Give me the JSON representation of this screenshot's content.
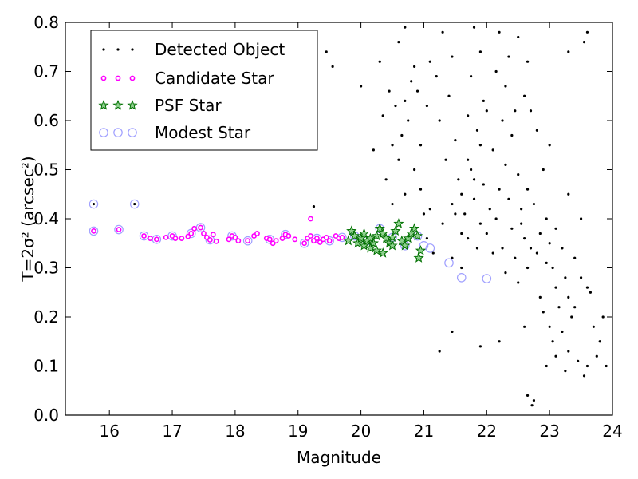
{
  "chart_data": {
    "type": "scatter",
    "title": "",
    "xlabel": "Magnitude",
    "ylabel": "T=2σ² (arcsec²)",
    "xlim": [
      15.3,
      24.0
    ],
    "ylim": [
      0.0,
      0.8
    ],
    "xticks": [
      "16",
      "17",
      "18",
      "19",
      "20",
      "21",
      "22",
      "23",
      "24"
    ],
    "yticks": [
      "0.0",
      "0.1",
      "0.2",
      "0.3",
      "0.4",
      "0.5",
      "0.6",
      "0.7",
      "0.8"
    ],
    "grid": false,
    "legend_position": "upper-left",
    "series": [
      {
        "name": "Detected Object",
        "marker": "dot",
        "color": "#000000",
        "points": [
          [
            15.75,
            0.43
          ],
          [
            16.4,
            0.43
          ],
          [
            19.25,
            0.425
          ],
          [
            19.2,
            0.4
          ],
          [
            19.2,
            0.695
          ],
          [
            19.55,
            0.71
          ],
          [
            19.45,
            0.74
          ],
          [
            20.0,
            0.67
          ],
          [
            20.3,
            0.72
          ],
          [
            20.6,
            0.76
          ],
          [
            20.2,
            0.54
          ],
          [
            20.5,
            0.55
          ],
          [
            20.4,
            0.48
          ],
          [
            20.5,
            0.43
          ],
          [
            20.35,
            0.61
          ],
          [
            20.7,
            0.79
          ],
          [
            20.85,
            0.71
          ],
          [
            20.9,
            0.66
          ],
          [
            20.75,
            0.6
          ],
          [
            20.95,
            0.55
          ],
          [
            20.85,
            0.5
          ],
          [
            20.6,
            0.52
          ],
          [
            20.7,
            0.45
          ],
          [
            21.3,
            0.78
          ],
          [
            21.45,
            0.73
          ],
          [
            21.2,
            0.69
          ],
          [
            21.4,
            0.65
          ],
          [
            21.25,
            0.6
          ],
          [
            21.5,
            0.56
          ],
          [
            21.35,
            0.52
          ],
          [
            21.55,
            0.48
          ],
          [
            21.1,
            0.42
          ],
          [
            21.3,
            0.39
          ],
          [
            21.6,
            0.37
          ],
          [
            21.15,
            0.33
          ],
          [
            21.45,
            0.32
          ],
          [
            21.05,
            0.36
          ],
          [
            21.0,
            0.41
          ],
          [
            21.8,
            0.79
          ],
          [
            21.9,
            0.74
          ],
          [
            21.75,
            0.69
          ],
          [
            21.95,
            0.64
          ],
          [
            21.7,
            0.61
          ],
          [
            21.85,
            0.58
          ],
          [
            22.0,
            0.62
          ],
          [
            21.9,
            0.55
          ],
          [
            21.75,
            0.5
          ],
          [
            21.95,
            0.47
          ],
          [
            21.8,
            0.44
          ],
          [
            21.65,
            0.41
          ],
          [
            21.9,
            0.39
          ],
          [
            22.05,
            0.42
          ],
          [
            21.7,
            0.36
          ],
          [
            21.85,
            0.34
          ],
          [
            22.2,
            0.78
          ],
          [
            22.35,
            0.73
          ],
          [
            22.15,
            0.7
          ],
          [
            22.3,
            0.67
          ],
          [
            22.45,
            0.62
          ],
          [
            22.25,
            0.6
          ],
          [
            22.4,
            0.57
          ],
          [
            22.1,
            0.54
          ],
          [
            22.3,
            0.51
          ],
          [
            22.5,
            0.49
          ],
          [
            22.2,
            0.46
          ],
          [
            22.35,
            0.44
          ],
          [
            22.55,
            0.42
          ],
          [
            22.15,
            0.4
          ],
          [
            22.4,
            0.38
          ],
          [
            22.6,
            0.36
          ],
          [
            22.25,
            0.34
          ],
          [
            22.45,
            0.32
          ],
          [
            22.65,
            0.3
          ],
          [
            22.3,
            0.29
          ],
          [
            22.5,
            0.27
          ],
          [
            22.7,
            0.34
          ],
          [
            22.55,
            0.39
          ],
          [
            22.65,
            0.46
          ],
          [
            22.8,
            0.58
          ],
          [
            22.9,
            0.5
          ],
          [
            22.75,
            0.43
          ],
          [
            22.95,
            0.4
          ],
          [
            22.85,
            0.37
          ],
          [
            23.0,
            0.35
          ],
          [
            22.8,
            0.33
          ],
          [
            22.95,
            0.31
          ],
          [
            23.1,
            0.38
          ],
          [
            23.2,
            0.34
          ],
          [
            23.05,
            0.3
          ],
          [
            23.25,
            0.28
          ],
          [
            23.1,
            0.26
          ],
          [
            23.3,
            0.24
          ],
          [
            23.15,
            0.22
          ],
          [
            23.35,
            0.2
          ],
          [
            23.0,
            0.18
          ],
          [
            23.2,
            0.17
          ],
          [
            23.05,
            0.15
          ],
          [
            23.3,
            0.13
          ],
          [
            23.45,
            0.11
          ],
          [
            23.6,
            0.1
          ],
          [
            23.75,
            0.12
          ],
          [
            23.55,
            0.08
          ],
          [
            23.5,
            0.28
          ],
          [
            23.65,
            0.25
          ],
          [
            23.4,
            0.22
          ],
          [
            23.7,
            0.18
          ],
          [
            23.85,
            0.2
          ],
          [
            23.8,
            0.15
          ],
          [
            23.9,
            0.1
          ],
          [
            23.25,
            0.09
          ],
          [
            22.95,
            0.1
          ],
          [
            23.1,
            0.12
          ],
          [
            22.9,
            0.21
          ],
          [
            22.85,
            0.24
          ],
          [
            23.4,
            0.32
          ],
          [
            23.6,
            0.26
          ],
          [
            23.5,
            0.4
          ],
          [
            23.3,
            0.45
          ],
          [
            22.65,
            0.04
          ],
          [
            22.72,
            0.02
          ],
          [
            22.75,
            0.03
          ],
          [
            22.6,
            0.18
          ],
          [
            22.2,
            0.15
          ],
          [
            21.9,
            0.14
          ],
          [
            21.45,
            0.17
          ],
          [
            21.25,
            0.13
          ],
          [
            23.55,
            0.76
          ],
          [
            23.3,
            0.74
          ],
          [
            23.6,
            0.78
          ],
          [
            22.5,
            0.77
          ],
          [
            22.65,
            0.72
          ],
          [
            22.6,
            0.65
          ],
          [
            22.7,
            0.62
          ],
          [
            23.0,
            0.55
          ],
          [
            21.6,
            0.45
          ],
          [
            21.8,
            0.48
          ],
          [
            21.5,
            0.41
          ],
          [
            21.45,
            0.43
          ],
          [
            22.0,
            0.37
          ],
          [
            22.1,
            0.33
          ],
          [
            21.6,
            0.3
          ],
          [
            21.7,
            0.52
          ],
          [
            20.55,
            0.63
          ],
          [
            20.45,
            0.66
          ],
          [
            20.8,
            0.68
          ],
          [
            20.7,
            0.64
          ],
          [
            20.65,
            0.57
          ],
          [
            20.95,
            0.46
          ],
          [
            21.05,
            0.63
          ],
          [
            21.1,
            0.72
          ]
        ]
      },
      {
        "name": "Candidate Star",
        "marker": "circle-magenta",
        "color": "#ff00ff",
        "points": [
          [
            15.75,
            0.375
          ],
          [
            16.15,
            0.378
          ],
          [
            19.2,
            0.4
          ],
          [
            16.55,
            0.365
          ],
          [
            16.65,
            0.36
          ],
          [
            16.75,
            0.358
          ],
          [
            16.9,
            0.362
          ],
          [
            17.0,
            0.365
          ],
          [
            17.05,
            0.36
          ],
          [
            17.15,
            0.36
          ],
          [
            17.25,
            0.364
          ],
          [
            17.3,
            0.37
          ],
          [
            17.35,
            0.38
          ],
          [
            17.45,
            0.382
          ],
          [
            17.5,
            0.37
          ],
          [
            17.55,
            0.362
          ],
          [
            17.6,
            0.357
          ],
          [
            17.65,
            0.368
          ],
          [
            17.7,
            0.354
          ],
          [
            17.9,
            0.358
          ],
          [
            17.95,
            0.365
          ],
          [
            18.0,
            0.362
          ],
          [
            18.05,
            0.355
          ],
          [
            18.2,
            0.355
          ],
          [
            18.3,
            0.365
          ],
          [
            18.35,
            0.37
          ],
          [
            18.5,
            0.36
          ],
          [
            18.55,
            0.358
          ],
          [
            18.6,
            0.35
          ],
          [
            18.65,
            0.355
          ],
          [
            18.75,
            0.36
          ],
          [
            18.8,
            0.368
          ],
          [
            18.85,
            0.365
          ],
          [
            18.95,
            0.358
          ],
          [
            19.1,
            0.35
          ],
          [
            19.15,
            0.36
          ],
          [
            19.2,
            0.365
          ],
          [
            19.25,
            0.355
          ],
          [
            19.3,
            0.36
          ],
          [
            19.35,
            0.352
          ],
          [
            19.4,
            0.358
          ],
          [
            19.45,
            0.362
          ],
          [
            19.5,
            0.355
          ],
          [
            19.6,
            0.365
          ],
          [
            19.65,
            0.36
          ],
          [
            19.7,
            0.362
          ]
        ]
      },
      {
        "name": "PSF Star",
        "marker": "star-green",
        "color": "#00b000",
        "points": [
          [
            19.85,
            0.375
          ],
          [
            19.9,
            0.365
          ],
          [
            19.95,
            0.35
          ],
          [
            20.0,
            0.36
          ],
          [
            20.05,
            0.345
          ],
          [
            20.1,
            0.355
          ],
          [
            20.15,
            0.34
          ],
          [
            20.2,
            0.35
          ],
          [
            20.25,
            0.365
          ],
          [
            20.3,
            0.38
          ],
          [
            20.35,
            0.37
          ],
          [
            20.4,
            0.36
          ],
          [
            20.45,
            0.35
          ],
          [
            20.5,
            0.362
          ],
          [
            20.55,
            0.375
          ],
          [
            20.6,
            0.39
          ],
          [
            20.65,
            0.355
          ],
          [
            20.7,
            0.345
          ],
          [
            20.75,
            0.36
          ],
          [
            20.8,
            0.37
          ],
          [
            20.85,
            0.38
          ],
          [
            20.9,
            0.365
          ],
          [
            20.95,
            0.335
          ],
          [
            20.92,
            0.32
          ],
          [
            20.05,
            0.37
          ],
          [
            20.15,
            0.36
          ],
          [
            20.25,
            0.335
          ],
          [
            20.35,
            0.33
          ],
          [
            19.8,
            0.355
          ],
          [
            20.5,
            0.345
          ]
        ]
      },
      {
        "name": "Modest Star",
        "marker": "circle-open",
        "color": "#a0a0ff",
        "points": [
          [
            15.75,
            0.43
          ],
          [
            16.4,
            0.43
          ],
          [
            15.75,
            0.375
          ],
          [
            16.15,
            0.378
          ],
          [
            16.55,
            0.365
          ],
          [
            16.75,
            0.358
          ],
          [
            17.0,
            0.365
          ],
          [
            17.3,
            0.37
          ],
          [
            17.45,
            0.382
          ],
          [
            17.6,
            0.357
          ],
          [
            17.95,
            0.365
          ],
          [
            18.2,
            0.355
          ],
          [
            18.55,
            0.358
          ],
          [
            18.8,
            0.368
          ],
          [
            19.1,
            0.35
          ],
          [
            19.3,
            0.36
          ],
          [
            19.5,
            0.355
          ],
          [
            19.7,
            0.362
          ],
          [
            19.9,
            0.365
          ],
          [
            20.1,
            0.355
          ],
          [
            20.3,
            0.38
          ],
          [
            20.5,
            0.362
          ],
          [
            20.7,
            0.345
          ],
          [
            20.9,
            0.365
          ],
          [
            21.0,
            0.345
          ],
          [
            21.1,
            0.34
          ],
          [
            21.4,
            0.31
          ],
          [
            21.6,
            0.28
          ],
          [
            22.0,
            0.278
          ]
        ]
      }
    ]
  }
}
